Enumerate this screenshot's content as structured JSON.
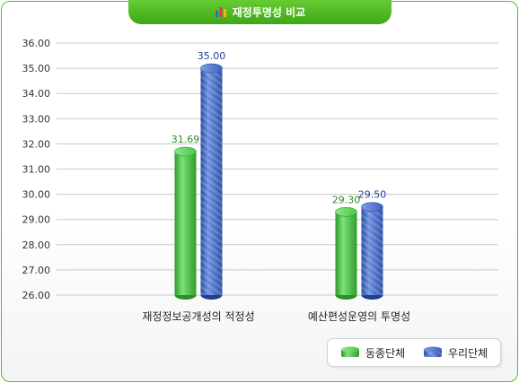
{
  "header": {
    "title": "재정투명성 비교",
    "icon": "bar-chart-icon"
  },
  "chart_data": {
    "type": "bar",
    "categories": [
      "재정정보공개성의 적정성",
      "예산편성운영의 투명성"
    ],
    "series": [
      {
        "name": "동종단체",
        "values": [
          31.69,
          29.3
        ],
        "labels": [
          "31.69",
          "29.30"
        ],
        "color": "#3cb539",
        "label_color": "#2e8b2a"
      },
      {
        "name": "우리단체",
        "values": [
          35.0,
          29.5
        ],
        "labels": [
          "35.00",
          "29.50"
        ],
        "color": "#3c5fb8",
        "label_color": "#23409a"
      }
    ],
    "ylim": [
      26,
      36
    ],
    "yticks": [
      "26.00",
      "27.00",
      "28.00",
      "29.00",
      "30.00",
      "31.00",
      "32.00",
      "33.00",
      "34.00",
      "35.00",
      "36.00"
    ],
    "grid": true,
    "legend_position": "bottom-right"
  }
}
